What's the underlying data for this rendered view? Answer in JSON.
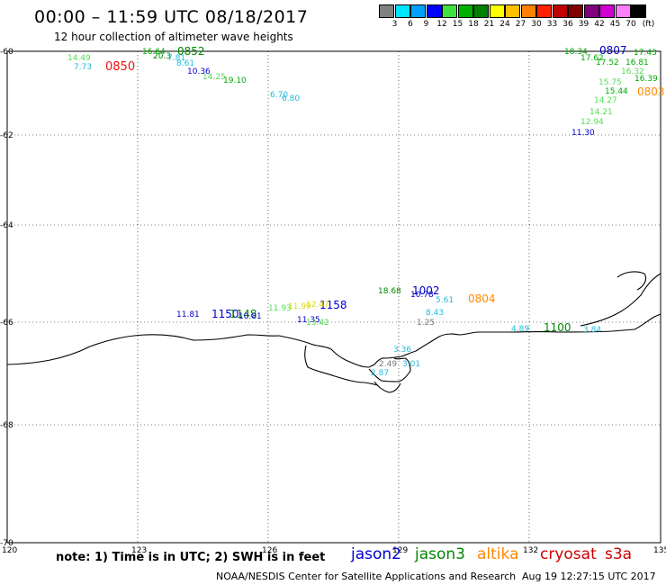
{
  "header": {
    "title": "00:00 – 11:59 UTC 08/18/2017",
    "subtitle": "12 hour collection of altimeter wave heights"
  },
  "legend": {
    "labels": [
      "3",
      "6",
      "9",
      "12",
      "15",
      "18",
      "21",
      "24",
      "27",
      "30",
      "33",
      "36",
      "39",
      "42",
      "45",
      "70",
      "(ft)"
    ],
    "colors": [
      "#808080",
      "#00e5ff",
      "#00a0ff",
      "#0000ff",
      "#40e040",
      "#00b000",
      "#008000",
      "#ffff00",
      "#ffc000",
      "#ff8000",
      "#ff2000",
      "#c00000",
      "#800000",
      "#800080",
      "#d000d0",
      "#ff80ff",
      "#000000"
    ]
  },
  "map": {
    "lon_ticks": [
      "120",
      "123",
      "126",
      "129",
      "132",
      "135"
    ],
    "lat_ticks": [
      "-60",
      "-62",
      "-64",
      "-66",
      "-68",
      "-70"
    ]
  },
  "wave_labels": [
    {
      "text": "14.49",
      "color": "#55dd55"
    },
    {
      "text": "7.73",
      "color": "#22bbdd"
    },
    {
      "text": "0850",
      "color": "#ee1111"
    },
    {
      "text": "16.64",
      "color": "#00aa00"
    },
    {
      "text": "0852",
      "color": "#008800"
    },
    {
      "text": "20.3",
      "color": "#008800"
    },
    {
      "text": "7.81",
      "color": "#22bbdd"
    },
    {
      "text": "8.61",
      "color": "#22bbdd"
    },
    {
      "text": "10.36",
      "color": "#0000cc"
    },
    {
      "text": "14.25",
      "color": "#55dd55"
    },
    {
      "text": "19.10",
      "color": "#00aa00"
    },
    {
      "text": "6.70",
      "color": "#22bbdd"
    },
    {
      "text": "6.80",
      "color": "#22bbdd"
    },
    {
      "text": "18.34",
      "color": "#00aa00"
    },
    {
      "text": "0807",
      "color": "#0000cc"
    },
    {
      "text": "17.43",
      "color": "#00aa00"
    },
    {
      "text": "17.62",
      "color": "#00aa00"
    },
    {
      "text": "17.52",
      "color": "#00aa00"
    },
    {
      "text": "16.81",
      "color": "#00aa00"
    },
    {
      "text": "16.32",
      "color": "#55dd55"
    },
    {
      "text": "15.75",
      "color": "#55dd55"
    },
    {
      "text": "16.39",
      "color": "#00aa00"
    },
    {
      "text": "15.44",
      "color": "#00aa00"
    },
    {
      "text": "0803",
      "color": "#ff8800"
    },
    {
      "text": "14.27",
      "color": "#55dd55"
    },
    {
      "text": "14.21",
      "color": "#55dd55"
    },
    {
      "text": "12.94",
      "color": "#55dd55"
    },
    {
      "text": "11.30",
      "color": "#0000cc"
    },
    {
      "text": "11.81",
      "color": "#0000cc"
    },
    {
      "text": "1150",
      "color": "#0000cc"
    },
    {
      "text": "1148",
      "color": "#008800"
    },
    {
      "text": "11.93",
      "color": "#55dd55"
    },
    {
      "text": "11.35",
      "color": "#0000cc"
    },
    {
      "text": "13.42",
      "color": "#55dd55"
    },
    {
      "text": "10.81",
      "color": "#0000cc"
    },
    {
      "text": "1158",
      "color": "#0000cc"
    },
    {
      "text": "11.99",
      "color": "#dddd00"
    },
    {
      "text": "12.47",
      "color": "#dddd00"
    },
    {
      "text": "18.68",
      "color": "#008800"
    },
    {
      "text": "1002",
      "color": "#0000cc"
    },
    {
      "text": "10.78",
      "color": "#0000cc"
    },
    {
      "text": "5.61",
      "color": "#22bbdd"
    },
    {
      "text": "0804",
      "color": "#ff8800"
    },
    {
      "text": "8.43",
      "color": "#22bbdd"
    },
    {
      "text": "1.25",
      "color": "#777777"
    },
    {
      "text": "3.01",
      "color": "#22bbdd"
    },
    {
      "text": "3.36",
      "color": "#22bbdd"
    },
    {
      "text": "2.49",
      "color": "#777777"
    },
    {
      "text": "2.87",
      "color": "#22bbdd"
    },
    {
      "text": "4.89",
      "color": "#22bbdd"
    },
    {
      "text": "1100",
      "color": "#008800"
    },
    {
      "text": "3.84",
      "color": "#22bbdd"
    }
  ],
  "footer": {
    "note": "note:  1) Time is in UTC;  2) SWH is in feet",
    "satellites": [
      {
        "name": "jason2",
        "color": "#0000cc"
      },
      {
        "name": "jason3",
        "color": "#008800"
      },
      {
        "name": "altika",
        "color": "#ff8800"
      },
      {
        "name": "cryosat",
        "color": "#cc0000"
      },
      {
        "name": "s3a",
        "color": "#cc0000"
      }
    ],
    "credit": "NOAA/NESDIS Center for Satellite Applications and Research",
    "timestamp": "Aug 19 12:27:15 UTC 2017"
  }
}
